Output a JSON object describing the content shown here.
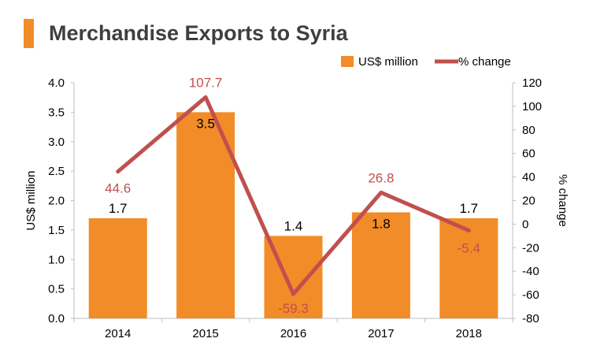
{
  "title": "Merchandise Exports to Syria",
  "colors": {
    "bar": "#f28c28",
    "line": "#c0504d",
    "text": "#000000",
    "accent": "#f28c28"
  },
  "chart_data": {
    "type": "bar",
    "title": "Merchandise Exports to Syria",
    "categories": [
      "2014",
      "2015",
      "2016",
      "2017",
      "2018"
    ],
    "series": [
      {
        "name": "US$ million",
        "type": "bar",
        "axis": "left",
        "values": [
          1.7,
          3.5,
          1.4,
          1.8,
          1.7
        ],
        "labels": [
          "1.7",
          "3.5",
          "1.4",
          "1.8",
          "1.7"
        ]
      },
      {
        "name": "% change",
        "type": "line",
        "axis": "right",
        "values": [
          44.6,
          107.7,
          -59.3,
          26.8,
          -5.4
        ],
        "labels": [
          "44.6",
          "107.7",
          "-59.3",
          "26.8",
          "-5.4"
        ]
      }
    ],
    "ylabel": "US$ million",
    "ylim": [
      0,
      4
    ],
    "yticks": [
      "0.0",
      "0.5",
      "1.0",
      "1.5",
      "2.0",
      "2.5",
      "3.0",
      "3.5",
      "4.0"
    ],
    "y2label": "% change",
    "y2lim": [
      -80,
      120
    ],
    "y2ticks": [
      "-80",
      "-60",
      "-40",
      "-20",
      "0",
      "20",
      "40",
      "60",
      "80",
      "100",
      "120"
    ],
    "grid": false,
    "legend": "top-right"
  }
}
